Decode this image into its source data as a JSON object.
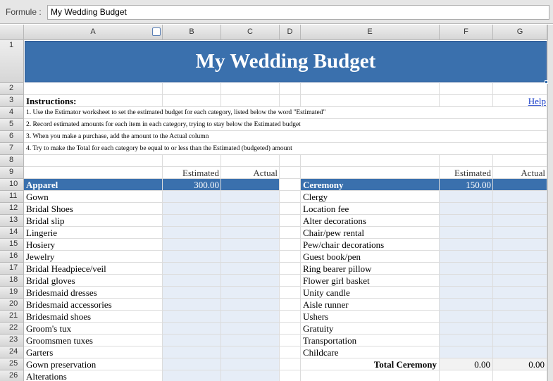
{
  "formula_bar": {
    "label": "Formule :",
    "value": "My Wedding Budget"
  },
  "columns": [
    "A",
    "B",
    "C",
    "D",
    "E",
    "F",
    "G"
  ],
  "rows": [
    "1",
    "2",
    "3",
    "4",
    "5",
    "6",
    "7",
    "8",
    "9",
    "10",
    "11",
    "12",
    "13",
    "14",
    "15",
    "16",
    "17",
    "18",
    "19",
    "20",
    "21",
    "22",
    "23",
    "24",
    "25",
    "26"
  ],
  "title": "My Wedding Budget",
  "instructions": {
    "heading": "Instructions:",
    "help": "Help",
    "steps": [
      "1. Use the Estimator worksheet to set the estimated budget for each category, listed below the word \"Estimated\"",
      "2. Record estimated amounts for each item in each category, trying to stay below the Estimated budget",
      "3. When you make a purchase, add the amount to the Actual column",
      "4. Try to make the Total for each category be equal to or less than the Estimated (budgeted) amount"
    ]
  },
  "headers": {
    "estimated": "Estimated",
    "actual": "Actual"
  },
  "left": {
    "category": "Apparel",
    "estimated": "300.00",
    "items": [
      "Gown",
      "Bridal Shoes",
      "Bridal slip",
      "Lingerie",
      "Hosiery",
      "Jewelry",
      "Bridal Headpiece/veil",
      "Bridal gloves",
      "Bridesmaid dresses",
      "Bridesmaid accessories",
      "Bridesmaid shoes",
      "Groom's tux",
      "Groomsmen tuxes",
      "Garters",
      "Gown preservation",
      "Alterations"
    ]
  },
  "right": {
    "category": "Ceremony",
    "estimated": "150.00",
    "items": [
      "Clergy",
      "Location fee",
      "Alter decorations",
      "Chair/pew rental",
      "Pew/chair decorations",
      "Guest book/pen",
      "Ring bearer pillow",
      "Flower girl basket",
      "Unity candle",
      "Aisle runner",
      "Ushers",
      "Gratuity",
      "Transportation",
      "Childcare"
    ],
    "total_label": "Total Ceremony",
    "total_estimated": "0.00",
    "total_actual": "0.00"
  }
}
